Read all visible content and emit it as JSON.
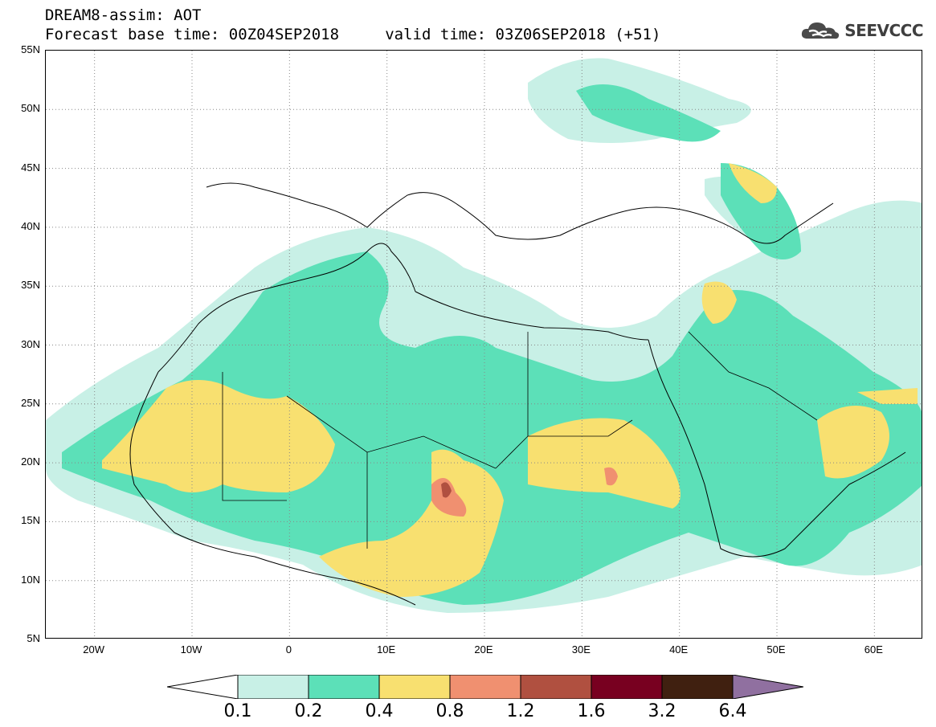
{
  "title": {
    "line1": "DREAM8-assim: AOT",
    "line2": "Forecast base time: 00Z04SEP2018     valid time: 03Z06SEP2018 (+51)"
  },
  "logo": {
    "text": "SEEVCCC",
    "icon": "cloud-icon",
    "color": "#4a4a4a"
  },
  "map": {
    "lon_range": [
      -25,
      65
    ],
    "lat_range": [
      5,
      55
    ],
    "lat_ticks": [
      "55N",
      "50N",
      "45N",
      "40N",
      "35N",
      "30N",
      "25N",
      "20N",
      "15N",
      "10N",
      "5N"
    ],
    "lat_values": [
      55,
      50,
      45,
      40,
      35,
      30,
      25,
      20,
      15,
      10,
      5
    ],
    "lon_ticks": [
      "20W",
      "10W",
      "0",
      "10E",
      "20E",
      "30E",
      "40E",
      "50E",
      "60E"
    ],
    "lon_values": [
      -20,
      -10,
      0,
      10,
      20,
      30,
      40,
      50,
      60
    ],
    "grid": "dotted"
  },
  "legend": {
    "labels": [
      "0.1",
      "0.2",
      "0.4",
      "0.8",
      "1.2",
      "1.6",
      "3.2",
      "6.4"
    ],
    "colors": [
      "#ffffff",
      "#c8f0e6",
      "#5ce0b8",
      "#f8e070",
      "#f09070",
      "#b05040",
      "#780020",
      "#402010",
      "#9070a0"
    ]
  }
}
